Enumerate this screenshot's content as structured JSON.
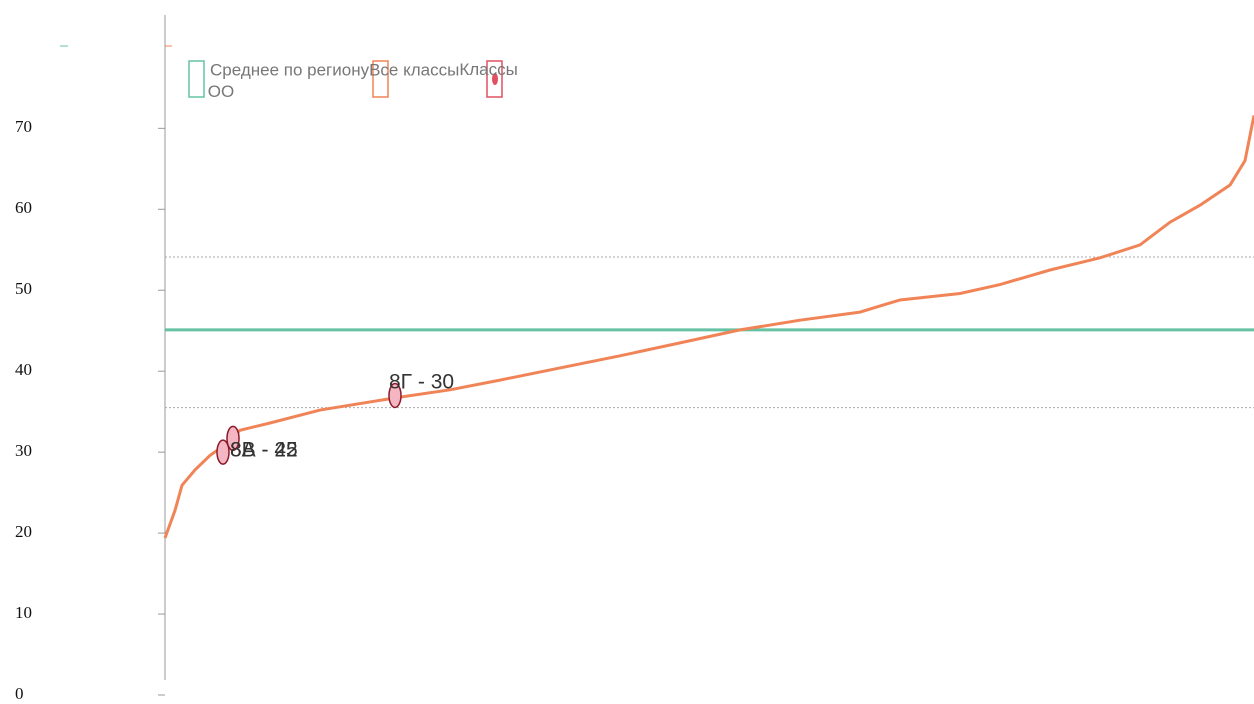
{
  "chart_data": {
    "type": "line",
    "legend": [
      "Среднее по региону",
      "Все классы",
      "Классы ОО"
    ],
    "region_mean": {
      "name": "Среднее по региону",
      "color": "#66c2a5",
      "value": 45.1
    },
    "reference_lines": [
      54.1,
      35.5
    ],
    "series": [
      {
        "name": "Все классы",
        "color": "#f08457",
        "x": [
          0,
          10,
          17,
          30,
          45,
          60,
          75,
          105,
          155,
          230,
          285,
          335,
          395,
          455,
          515,
          575,
          635,
          695,
          735,
          795,
          835,
          885,
          935,
          975,
          1005,
          1035,
          1065,
          1080,
          1089
        ],
        "values": [
          19.4,
          22.8,
          25.9,
          27.8,
          29.6,
          30.9,
          32.7,
          33.6,
          35.2,
          36.7,
          37.7,
          38.9,
          40.4,
          41.9,
          43.5,
          45.1,
          46.3,
          47.3,
          48.8,
          49.6,
          50.7,
          52.5,
          54.0,
          55.6,
          58.4,
          60.5,
          63.0,
          66.0,
          71.6
        ]
      }
    ],
    "points": {
      "name": "Классы ОО",
      "color": "#f4b6c2",
      "edge": "#8b1a2b",
      "x": [
        58,
        68,
        230
      ],
      "values": [
        30.0,
        31.7,
        37.0
      ],
      "labels": [
        "8А - 22",
        "8В - 45",
        "8Г - 30"
      ]
    },
    "xlim": [
      0,
      1089
    ],
    "ylim": [
      0,
      84
    ],
    "yticks": [
      0,
      10,
      20,
      30,
      40,
      50,
      60,
      70
    ]
  }
}
